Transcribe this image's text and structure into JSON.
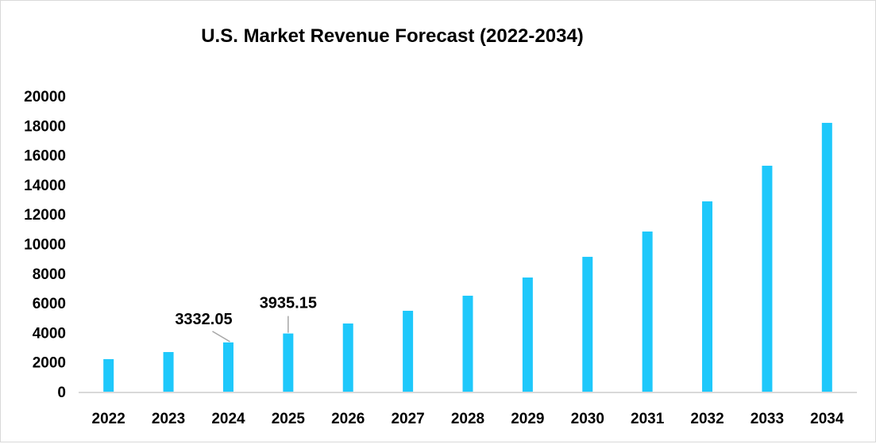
{
  "chart_data": {
    "type": "bar",
    "title": "U.S. Market Revenue Forecast (2022-2034)",
    "xlabel": "",
    "ylabel": "",
    "ylim": [
      0,
      20000
    ],
    "yticks": [
      0,
      2000,
      4000,
      6000,
      8000,
      10000,
      12000,
      14000,
      16000,
      18000,
      20000
    ],
    "grid": false,
    "legend": "none",
    "bar_color": "#1ec8fb",
    "categories": [
      "2022",
      "2023",
      "2024",
      "2025",
      "2026",
      "2027",
      "2028",
      "2029",
      "2030",
      "2031",
      "2032",
      "2033",
      "2034"
    ],
    "values": [
      2200,
      2680,
      3332.05,
      3935.15,
      4610,
      5470,
      6490,
      7720,
      9120,
      10830,
      12870,
      15280,
      18180
    ],
    "data_labels": [
      {
        "category": "2024",
        "text": "3332.05"
      },
      {
        "category": "2025",
        "text": "3935.15"
      }
    ]
  }
}
